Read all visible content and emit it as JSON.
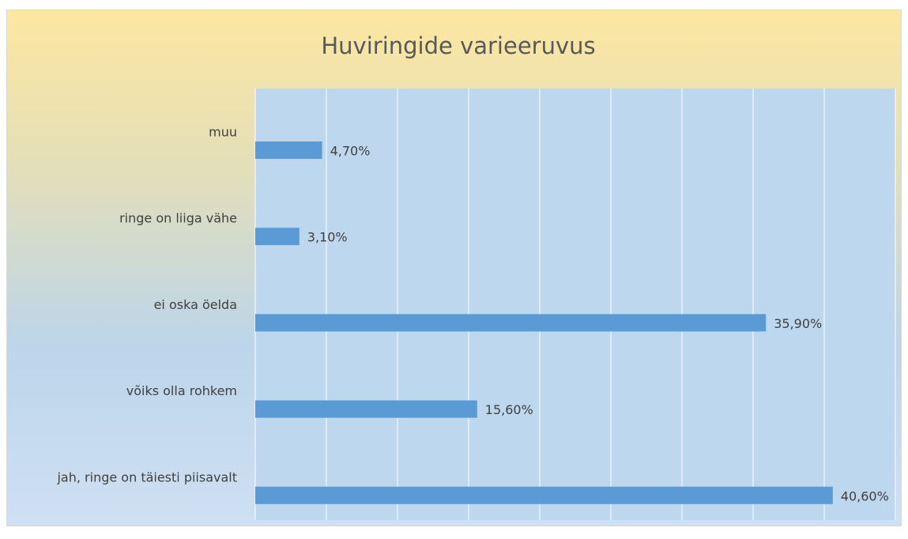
{
  "chart_data": {
    "type": "bar",
    "orientation": "horizontal",
    "title": "Huviringide varieeruvus",
    "categories": [
      "muu",
      "ringe on liiga vähe",
      "ei oska öelda",
      "võiks olla rohkem",
      "jah, ringe on täiesti piisavalt"
    ],
    "values": [
      4.7,
      3.1,
      35.9,
      15.6,
      40.6
    ],
    "value_labels": [
      "4,70%",
      "3,10%",
      "35,90%",
      "15,60%",
      "40,60%"
    ],
    "color": "#5b9bd5",
    "xlim": [
      0,
      45
    ],
    "xticks": [
      0,
      5,
      10,
      15,
      20,
      25,
      30,
      35,
      40,
      45
    ],
    "grid": true
  }
}
